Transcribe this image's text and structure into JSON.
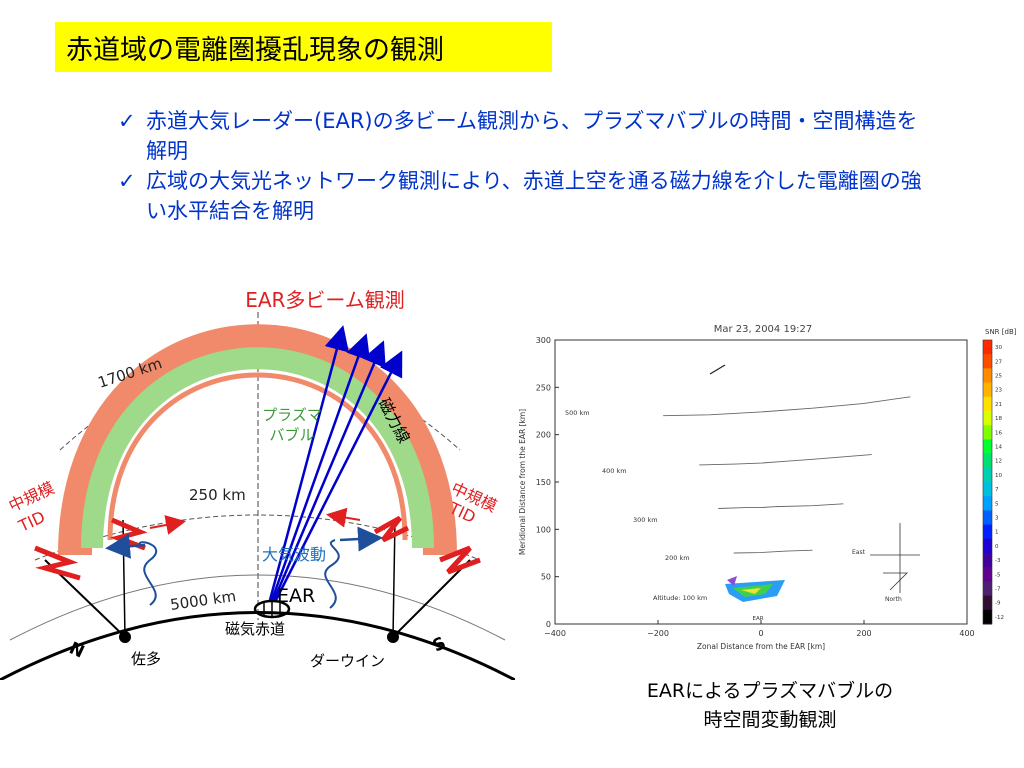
{
  "title": "赤道域の電離圏擾乱現象の観測",
  "bullets": [
    {
      "check": "✓",
      "text": "赤道大気レーダー(EAR)の多ビーム観測から、プラズマバブルの時間・空間構造を解明"
    },
    {
      "check": "✓",
      "text": "広域の大気光ネットワーク観測により、赤道上空を通る磁力線を介した電離圏の強い水平結合を解明"
    }
  ],
  "diagram": {
    "title": "EAR多ビーム観測",
    "labels": {
      "alt_1700": "1700 km",
      "alt_250": "250 km",
      "alt_5000": "5000 km",
      "plasma_bubble": [
        "プラズマ",
        "バブル"
      ],
      "field_line": "磁力線",
      "tid_left": [
        "中規模",
        "TID"
      ],
      "tid_right": [
        "中規模",
        "TID"
      ],
      "gravity_wave": "大気波動",
      "ear": "EAR",
      "magnetic_equator": "磁気赤道",
      "north": "N",
      "south": "S",
      "sata": "佐多",
      "darwin": "ダーウイン"
    }
  },
  "chart": {
    "title": "Mar 23, 2004 19:27",
    "xlabel": "Zonal Distance from the EAR [km]",
    "ylabel": "Meridional Distance from the EAR [km]",
    "colorbar_label": "SNR [dB]",
    "colorbar_ticks": [
      "30",
      "27",
      "25",
      "23",
      "21",
      "18",
      "16",
      "14",
      "12",
      "10",
      "7",
      "5",
      "3",
      "1",
      "0",
      "-3",
      "-5",
      "-7",
      "-9",
      "-12"
    ],
    "altitude_labels": [
      "500 km",
      "400 km",
      "300 km",
      "200 km",
      "Altitude: 100 km"
    ],
    "ear_label": "EAR",
    "compass": {
      "east": "East",
      "north": "North"
    },
    "colors": {
      "accent_blue": "#0033cc"
    }
  },
  "chart_data": {
    "type": "line",
    "title": "Mar 23, 2004 19:27",
    "xlabel": "Zonal Distance from the EAR [km]",
    "ylabel": "Meridional Distance from the EAR [km]",
    "xlim": [
      -400,
      400
    ],
    "ylim": [
      0,
      300
    ],
    "xticks": [
      -400,
      -200,
      0,
      200,
      400
    ],
    "yticks": [
      0,
      50,
      100,
      150,
      200,
      250,
      300
    ],
    "series": [
      {
        "name": "500 km",
        "x": [
          -190,
          -100,
          0,
          100,
          200,
          290
        ],
        "y": [
          220,
          221,
          224,
          228,
          233,
          240
        ]
      },
      {
        "name": "400 km",
        "x": [
          -120,
          -50,
          0,
          50,
          100,
          215
        ],
        "y": [
          168,
          169,
          170,
          172,
          174,
          179
        ]
      },
      {
        "name": "300 km",
        "x": [
          -83,
          -30,
          0,
          30,
          100,
          160
        ],
        "y": [
          122,
          123,
          123,
          124,
          125,
          127
        ]
      },
      {
        "name": "200 km",
        "x": [
          -53,
          0,
          50,
          100
        ],
        "y": [
          75,
          75.5,
          77,
          78
        ]
      }
    ]
  }
}
